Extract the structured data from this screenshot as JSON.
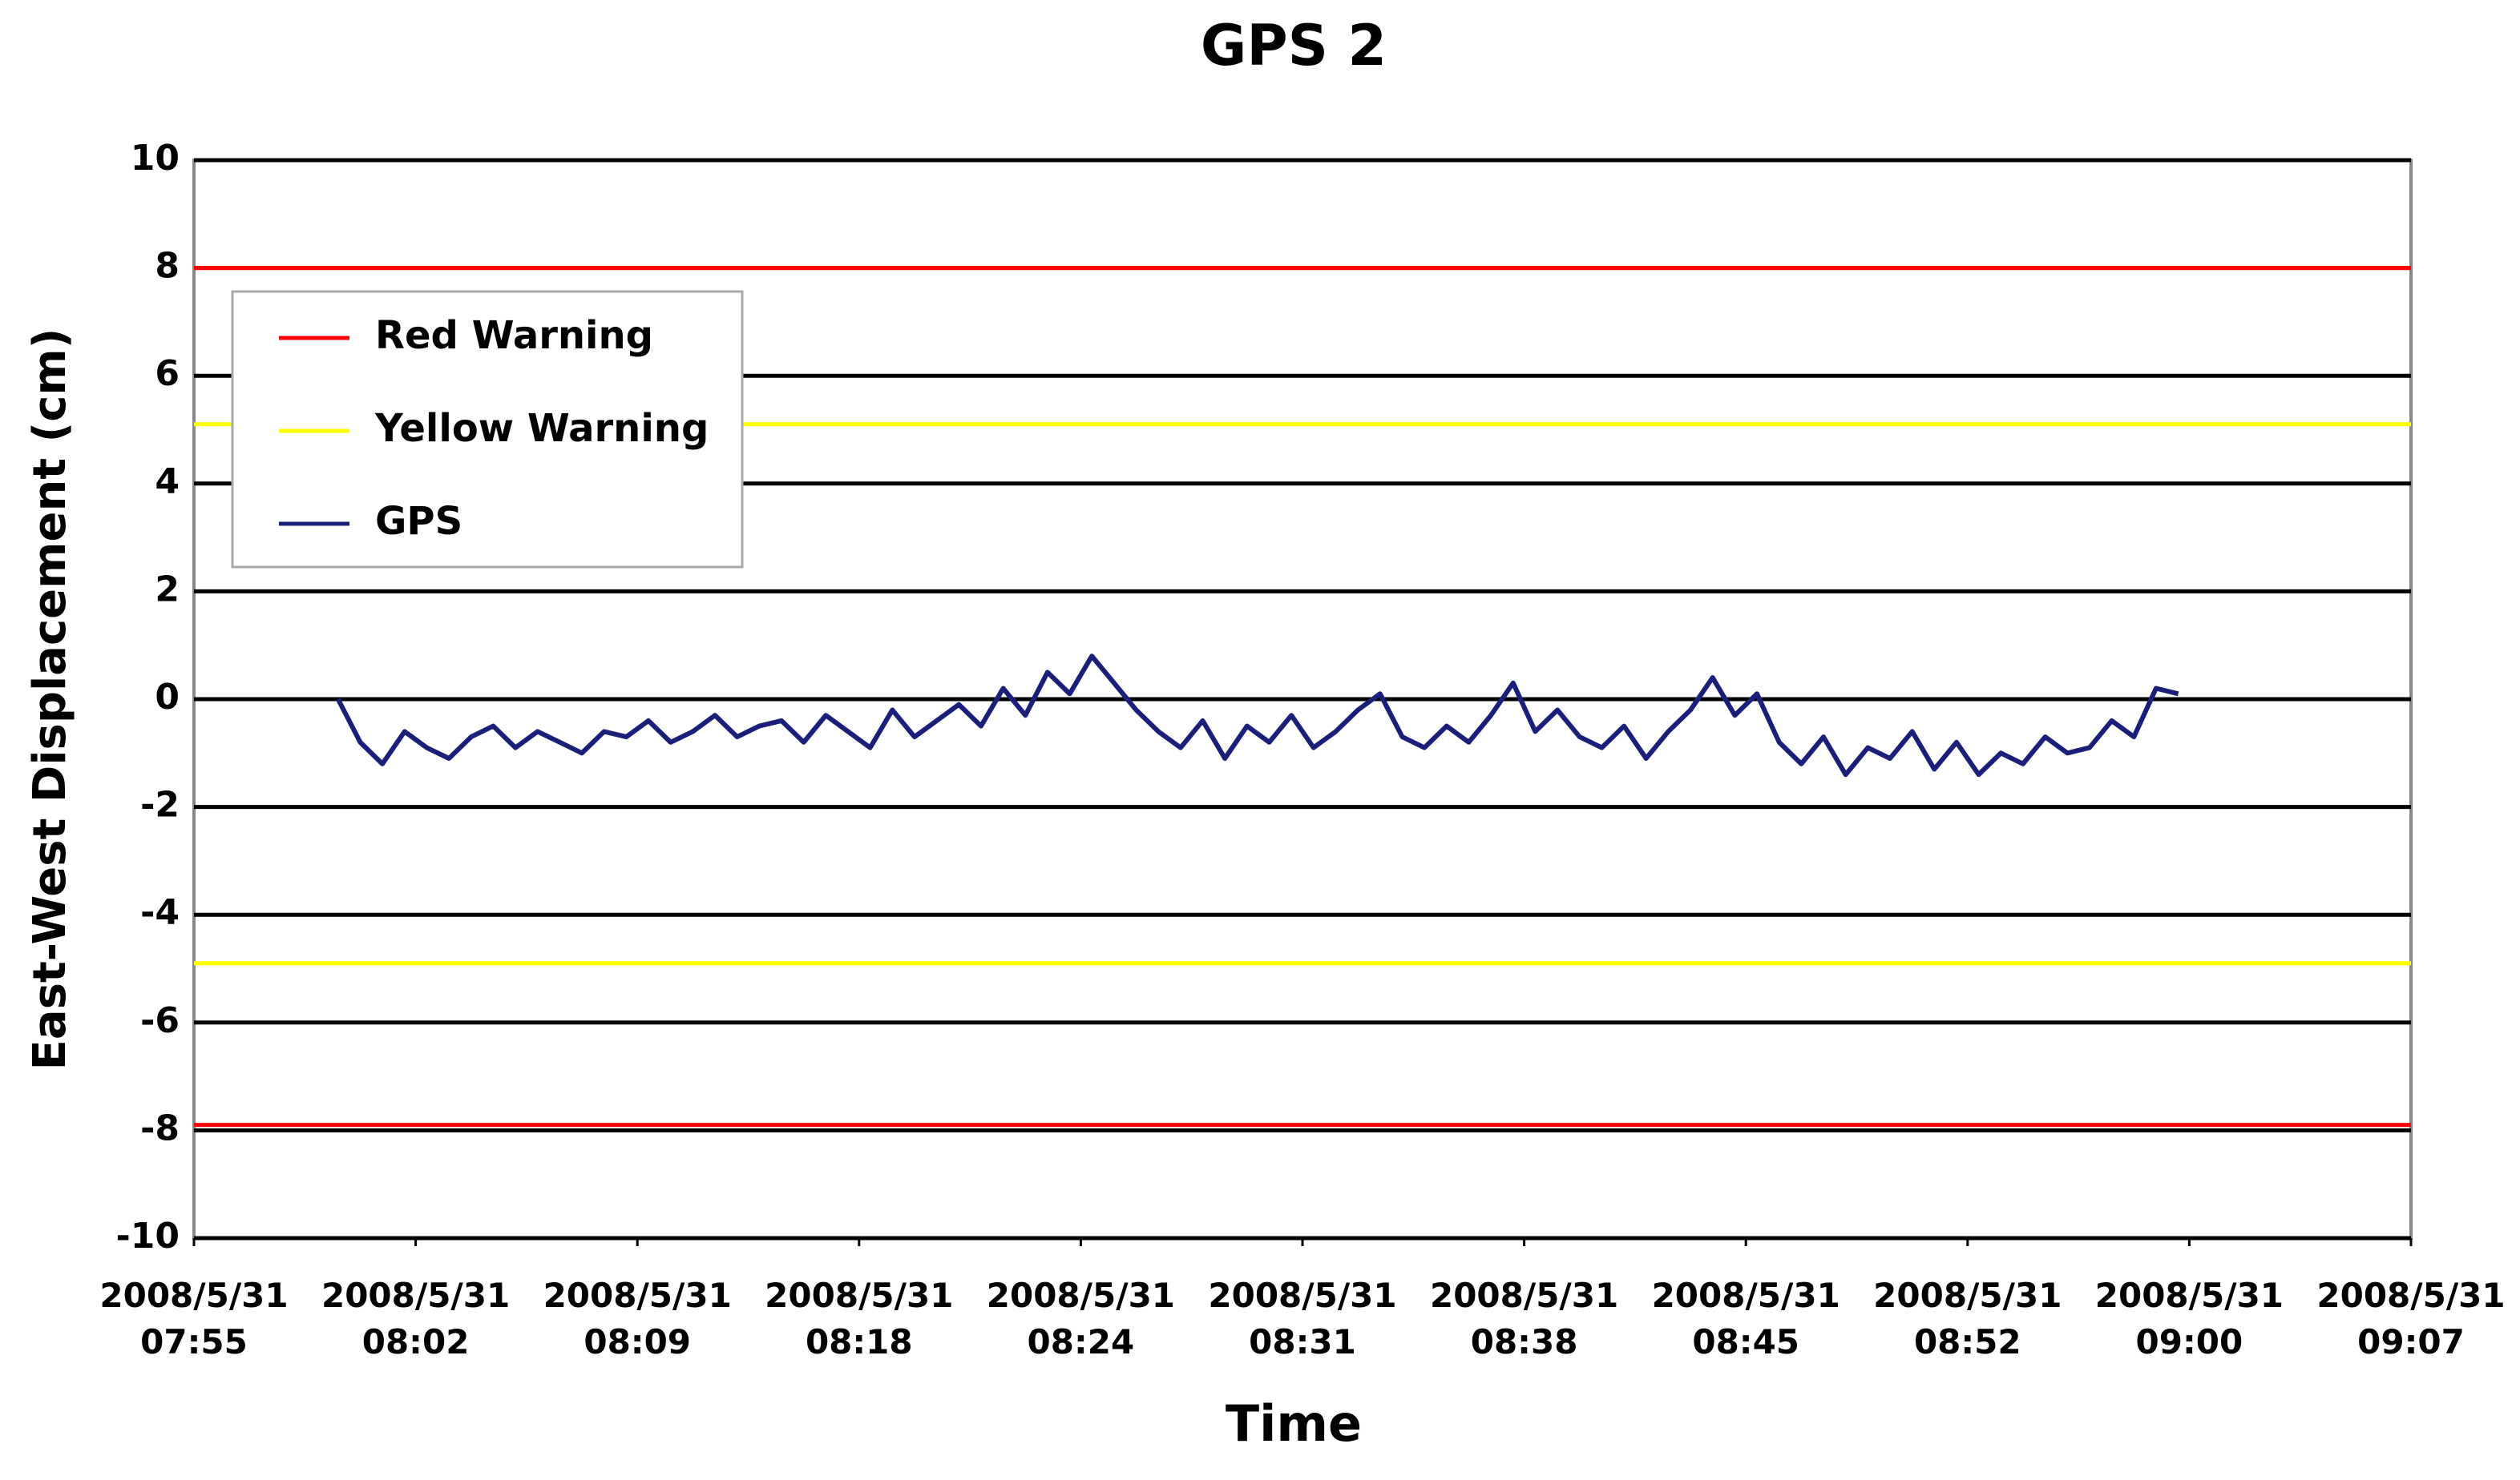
{
  "chart_data": {
    "type": "line",
    "title": "GPS 2",
    "x_label": "Time",
    "y_label": "East-West Displacement (cm)",
    "xlim": [
      0,
      10
    ],
    "xticks": [
      {
        "value": 0,
        "label": [
          "2008/5/31",
          "07:55"
        ]
      },
      {
        "value": 1,
        "label": [
          "2008/5/31",
          "08:02"
        ]
      },
      {
        "value": 2,
        "label": [
          "2008/5/31",
          "08:09"
        ]
      },
      {
        "value": 3,
        "label": [
          "2008/5/31",
          "08:18"
        ]
      },
      {
        "value": 4,
        "label": [
          "2008/5/31",
          "08:24"
        ]
      },
      {
        "value": 5,
        "label": [
          "2008/5/31",
          "08:31"
        ]
      },
      {
        "value": 6,
        "label": [
          "2008/5/31",
          "08:38"
        ]
      },
      {
        "value": 7,
        "label": [
          "2008/5/31",
          "08:45"
        ]
      },
      {
        "value": 8,
        "label": [
          "2008/5/31",
          "08:52"
        ]
      },
      {
        "value": 9,
        "label": [
          "2008/5/31",
          "09:00"
        ]
      },
      {
        "value": 10,
        "label": [
          "2008/5/31",
          "09:07"
        ]
      }
    ],
    "ylim": [
      -10,
      10
    ],
    "yticks": [
      -10,
      -8,
      -6,
      -4,
      -2,
      0,
      2,
      4,
      6,
      8,
      10
    ],
    "grid": true,
    "legend": "upper left",
    "warnings": [
      {
        "name": "Red Warning",
        "color": "#ff0000",
        "levels": [
          8,
          -7.9
        ]
      },
      {
        "name": "Yellow Warning",
        "color": "#ffff00",
        "levels": [
          5.1,
          -4.9
        ]
      }
    ],
    "series": [
      {
        "name": "GPS",
        "color": "#1a1f7a",
        "x": [
          0.65,
          0.75,
          0.85,
          0.95,
          1.05,
          1.15,
          1.25,
          1.35,
          1.45,
          1.55,
          1.65,
          1.75,
          1.85,
          1.95,
          2.05,
          2.15,
          2.25,
          2.35,
          2.45,
          2.55,
          2.65,
          2.75,
          2.85,
          2.95,
          3.05,
          3.15,
          3.25,
          3.35,
          3.45,
          3.55,
          3.65,
          3.75,
          3.85,
          3.95,
          4.05,
          4.15,
          4.25,
          4.35,
          4.45,
          4.55,
          4.65,
          4.75,
          4.85,
          4.95,
          5.05,
          5.15,
          5.25,
          5.35,
          5.45,
          5.55,
          5.65,
          5.75,
          5.85,
          5.95,
          6.05,
          6.15,
          6.25,
          6.35,
          6.45,
          6.55,
          6.65,
          6.75,
          6.85,
          6.95,
          7.05,
          7.15,
          7.25,
          7.35,
          7.45,
          7.55,
          7.65,
          7.75,
          7.85,
          7.95,
          8.05,
          8.15,
          8.25,
          8.35,
          8.45,
          8.55,
          8.65,
          8.75,
          8.85,
          8.95
        ],
        "values": [
          0,
          -0.8,
          -1.2,
          -0.6,
          -0.9,
          -1.1,
          -0.7,
          -0.5,
          -0.9,
          -0.6,
          -0.8,
          -1.0,
          -0.6,
          -0.7,
          -0.4,
          -0.8,
          -0.6,
          -0.3,
          -0.7,
          -0.5,
          -0.4,
          -0.8,
          -0.3,
          -0.6,
          -0.9,
          -0.2,
          -0.7,
          -0.4,
          -0.1,
          -0.5,
          0.2,
          -0.3,
          0.5,
          0.1,
          0.8,
          0.3,
          -0.2,
          -0.6,
          -0.9,
          -0.4,
          -1.1,
          -0.5,
          -0.8,
          -0.3,
          -0.9,
          -0.6,
          -0.2,
          0.1,
          -0.7,
          -0.9,
          -0.5,
          -0.8,
          -0.3,
          0.3,
          -0.6,
          -0.2,
          -0.7,
          -0.9,
          -0.5,
          -1.1,
          -0.6,
          -0.2,
          0.4,
          -0.3,
          0.1,
          -0.8,
          -1.2,
          -0.7,
          -1.4,
          -0.9,
          -1.1,
          -0.6,
          -1.3,
          -0.8,
          -1.4,
          -1.0,
          -1.2,
          -0.7,
          -1.0,
          -0.9,
          -0.4,
          -0.7,
          0.2,
          0.1
        ]
      }
    ]
  }
}
